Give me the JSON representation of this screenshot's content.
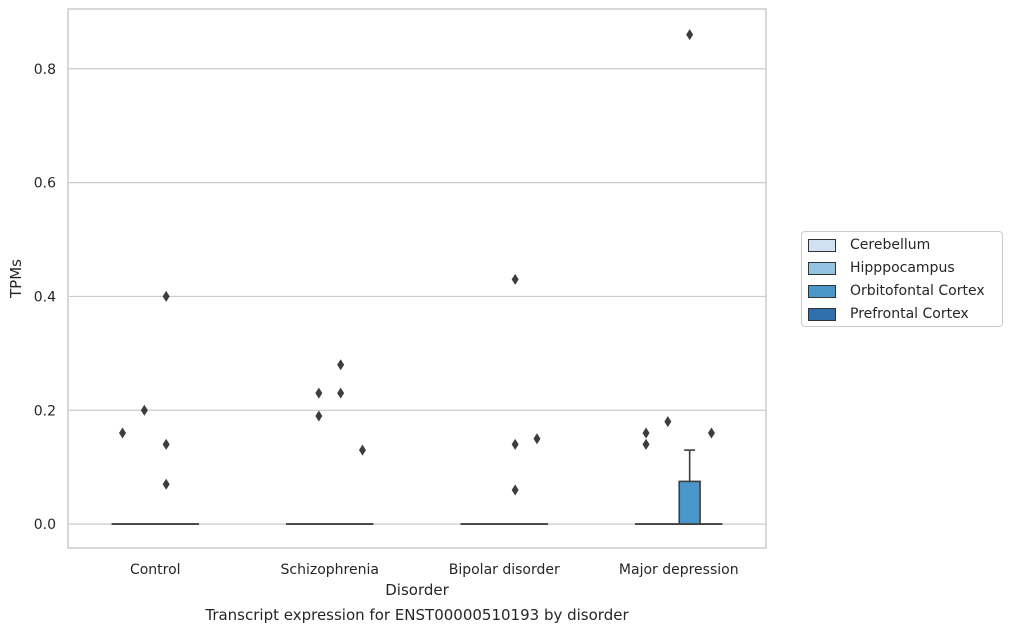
{
  "caption": "Transcript expression for ENST00000510193 by disorder",
  "chart_data": {
    "type": "box",
    "xlabel": "Disorder",
    "ylabel": "TPMs",
    "categories": [
      "Control",
      "Schizophrenia",
      "Bipolar disorder",
      "Major depression"
    ],
    "ylim": [
      -0.042,
      0.905
    ],
    "yticks": [
      "0.0",
      "0.2",
      "0.4",
      "0.6",
      "0.8"
    ],
    "ytick_values": [
      0.0,
      0.2,
      0.4,
      0.6,
      0.8
    ],
    "grid": "horizontal",
    "legend_position": "right",
    "series": [
      {
        "name": "Cerebellum",
        "color": "#d0e1f2",
        "boxes": [
          {
            "category": "Control",
            "q1": 0,
            "median": 0,
            "q3": 0,
            "whisker_low": 0,
            "whisker_high": 0,
            "outliers": [
              0.16
            ]
          },
          {
            "category": "Schizophrenia",
            "q1": 0,
            "median": 0,
            "q3": 0,
            "whisker_low": 0,
            "whisker_high": 0,
            "outliers": []
          },
          {
            "category": "Bipolar disorder",
            "q1": 0,
            "median": 0,
            "q3": 0,
            "whisker_low": 0,
            "whisker_high": 0,
            "outliers": []
          },
          {
            "category": "Major depression",
            "q1": 0,
            "median": 0,
            "q3": 0,
            "whisker_low": 0,
            "whisker_high": 0,
            "outliers": [
              0.16,
              0.14
            ]
          }
        ]
      },
      {
        "name": "Hipppocampus",
        "color": "#94c4df",
        "boxes": [
          {
            "category": "Control",
            "q1": 0,
            "median": 0,
            "q3": 0,
            "whisker_low": 0,
            "whisker_high": 0,
            "outliers": [
              0.2
            ]
          },
          {
            "category": "Schizophrenia",
            "q1": 0,
            "median": 0,
            "q3": 0,
            "whisker_low": 0,
            "whisker_high": 0,
            "outliers": [
              0.23,
              0.19
            ]
          },
          {
            "category": "Bipolar disorder",
            "q1": 0,
            "median": 0,
            "q3": 0,
            "whisker_low": 0,
            "whisker_high": 0,
            "outliers": []
          },
          {
            "category": "Major depression",
            "q1": 0,
            "median": 0,
            "q3": 0,
            "whisker_low": 0,
            "whisker_high": 0,
            "outliers": [
              0.18
            ]
          }
        ]
      },
      {
        "name": "Orbitofontal Cortex",
        "color": "#4a98c9",
        "boxes": [
          {
            "category": "Control",
            "q1": 0,
            "median": 0,
            "q3": 0,
            "whisker_low": 0,
            "whisker_high": 0,
            "outliers": [
              0.4,
              0.14,
              0.07
            ]
          },
          {
            "category": "Schizophrenia",
            "q1": 0,
            "median": 0,
            "q3": 0,
            "whisker_low": 0,
            "whisker_high": 0,
            "outliers": [
              0.28,
              0.23
            ]
          },
          {
            "category": "Bipolar disorder",
            "q1": 0,
            "median": 0,
            "q3": 0,
            "whisker_low": 0,
            "whisker_high": 0,
            "outliers": [
              0.43,
              0.14,
              0.06
            ]
          },
          {
            "category": "Major depression",
            "q1": 0,
            "median": 0,
            "q3": 0.075,
            "whisker_low": 0,
            "whisker_high": 0.13,
            "outliers": [
              0.86
            ]
          }
        ]
      },
      {
        "name": "Prefrontal Cortex",
        "color": "#2e6fac",
        "boxes": [
          {
            "category": "Control",
            "q1": 0,
            "median": 0,
            "q3": 0,
            "whisker_low": 0,
            "whisker_high": 0,
            "outliers": []
          },
          {
            "category": "Schizophrenia",
            "q1": 0,
            "median": 0,
            "q3": 0,
            "whisker_low": 0,
            "whisker_high": 0,
            "outliers": [
              0.13
            ]
          },
          {
            "category": "Bipolar disorder",
            "q1": 0,
            "median": 0,
            "q3": 0,
            "whisker_low": 0,
            "whisker_high": 0,
            "outliers": [
              0.15
            ]
          },
          {
            "category": "Major depression",
            "q1": 0,
            "median": 0,
            "q3": 0,
            "whisker_low": 0,
            "whisker_high": 0,
            "outliers": [
              0.16
            ]
          }
        ]
      }
    ]
  }
}
